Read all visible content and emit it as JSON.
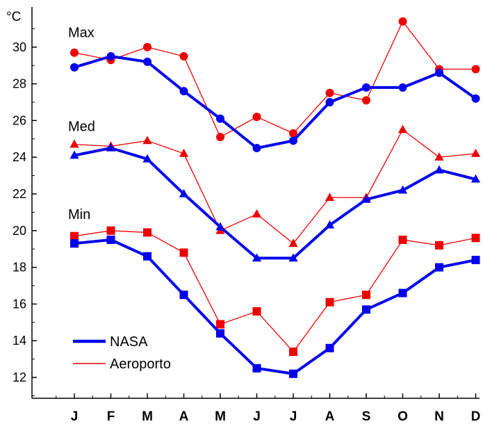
{
  "chart_data": {
    "type": "line",
    "unit": "°C",
    "categories": [
      "J",
      "F",
      "M",
      "A",
      "M",
      "J",
      "J",
      "A",
      "S",
      "O",
      "N",
      "D"
    ],
    "y_ticks": [
      "12",
      "14",
      "16",
      "18",
      "20",
      "22",
      "24",
      "26",
      "28",
      "30"
    ],
    "ylim": [
      11,
      32
    ],
    "grid": false,
    "legend_placement": "bottom-left",
    "groups": [
      {
        "label": "Max",
        "marker": "circle"
      },
      {
        "label": "Med",
        "marker": "triangle"
      },
      {
        "label": "Min",
        "marker": "square"
      }
    ],
    "series": [
      {
        "name": "NASA",
        "group": "Max",
        "color": "#0000ee",
        "marker": "circle",
        "values": [
          28.9,
          29.5,
          29.2,
          27.6,
          26.1,
          24.5,
          24.9,
          27.0,
          27.8,
          27.8,
          28.6,
          27.2
        ]
      },
      {
        "name": "Aeroporto",
        "group": "Max",
        "color": "#ee0000",
        "marker": "circle",
        "values": [
          29.7,
          29.3,
          30.0,
          29.5,
          25.1,
          26.2,
          25.3,
          27.5,
          27.1,
          31.4,
          28.8,
          28.8
        ]
      },
      {
        "name": "NASA",
        "group": "Med",
        "color": "#0000ee",
        "marker": "triangle",
        "values": [
          24.1,
          24.5,
          23.9,
          22.0,
          20.2,
          18.5,
          18.5,
          20.3,
          21.7,
          22.2,
          23.3,
          22.8
        ]
      },
      {
        "name": "Aeroporto",
        "group": "Med",
        "color": "#ee0000",
        "marker": "triangle",
        "values": [
          24.7,
          24.6,
          24.9,
          24.2,
          20.0,
          20.9,
          19.3,
          21.8,
          21.8,
          25.5,
          24.0,
          24.2
        ]
      },
      {
        "name": "NASA",
        "group": "Min",
        "color": "#0000ee",
        "marker": "square",
        "values": [
          19.3,
          19.5,
          18.6,
          16.5,
          14.4,
          12.5,
          12.2,
          13.6,
          15.7,
          16.6,
          18.0,
          18.4
        ]
      },
      {
        "name": "Aeroporto",
        "group": "Min",
        "color": "#ee0000",
        "marker": "square",
        "values": [
          19.7,
          20.0,
          19.9,
          18.8,
          14.9,
          15.6,
          13.4,
          16.1,
          16.5,
          19.5,
          19.2,
          19.6
        ]
      }
    ],
    "legend": [
      {
        "name": "NASA",
        "color": "#0000ee",
        "style": "thick"
      },
      {
        "name": "Aeroporto",
        "color": "#ee0000",
        "style": "thin"
      }
    ]
  }
}
